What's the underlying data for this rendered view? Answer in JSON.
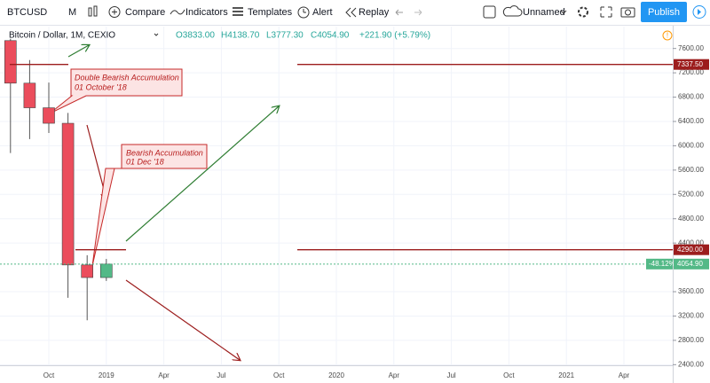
{
  "toolbar": {
    "symbol": "BTCUSD",
    "interval": "M",
    "compare": "Compare",
    "indicators": "Indicators",
    "templates": "Templates",
    "alert": "Alert",
    "replay": "Replay",
    "layout_name": "Unnamed",
    "publish": "Publish"
  },
  "legend": {
    "title": "Bitcoin / Dollar, 1M, CEXIO",
    "open": "O3833.00",
    "high": "H4138.70",
    "low": "L3777.30",
    "close": "C4054.90",
    "change": "+221.90 (+5.79%)"
  },
  "chart_data": {
    "type": "candlestick",
    "open": [
      7730,
      7030,
      6625,
      6370,
      4040,
      3833
    ],
    "high": [
      7760,
      7410,
      7040,
      6540,
      4200,
      4138.7
    ],
    "low": [
      5880,
      6110,
      6210,
      3500,
      3130,
      3777.3
    ],
    "close": [
      7030,
      6625,
      6370,
      4040,
      3833,
      4054.9
    ],
    "up_color": "#53b987",
    "down_color": "#eb4d5c",
    "ylim": [
      2390,
      7960
    ],
    "yticks": [
      {
        "value": 2400,
        "label": "2400.00"
      },
      {
        "value": 2800,
        "label": "2800.00"
      },
      {
        "value": 3200,
        "label": "3200.00"
      },
      {
        "value": 3600,
        "label": "3600.00"
      },
      {
        "value": 4400,
        "label": "4400.00"
      },
      {
        "value": 4800,
        "label": "4800.00"
      },
      {
        "value": 5200,
        "label": "5200.00"
      },
      {
        "value": 5600,
        "label": "5600.00"
      },
      {
        "value": 6000,
        "label": "6000.00"
      },
      {
        "value": 6400,
        "label": "6400.00"
      },
      {
        "value": 6800,
        "label": "6800.00"
      },
      {
        "value": 7200,
        "label": "7200.00"
      },
      {
        "value": 7600,
        "label": "7600.00"
      }
    ],
    "xticks": [
      "Oct",
      "2019",
      "Apr",
      "Jul",
      "Oct",
      "2020",
      "Apr",
      "Jul",
      "Oct",
      "2021",
      "Apr"
    ],
    "levels": [
      {
        "value": 7337.5,
        "label": "7337.50"
      },
      {
        "value": 4290,
        "label": "4290.00"
      }
    ],
    "last_price": {
      "value": 4054.9,
      "label": "4054.90",
      "change_label": "-48.12%"
    },
    "annotations": [
      {
        "lines": [
          "Double Bearish Accumulation",
          "01 October '18"
        ]
      },
      {
        "lines": [
          "Bearish Accumulation",
          "01 Dec '18"
        ]
      }
    ]
  }
}
